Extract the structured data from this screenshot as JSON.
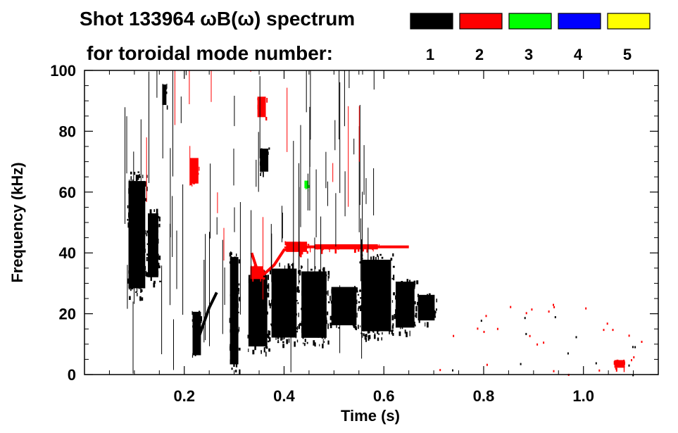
{
  "title_line1": "Shot 133964 ωB(ω) spectrum",
  "title_line2": "for toroidal mode number:",
  "legend": [
    {
      "label": "1",
      "color": "#000000"
    },
    {
      "label": "2",
      "color": "#ff0000"
    },
    {
      "label": "3",
      "color": "#00ff00"
    },
    {
      "label": "4",
      "color": "#0000ff"
    },
    {
      "label": "5",
      "color": "#ffff00"
    }
  ],
  "chart_data": {
    "type": "heatmap",
    "xlabel": "Time (s)",
    "ylabel": "Frequency (kHz)",
    "xlim": [
      0.0,
      1.15
    ],
    "ylim": [
      0,
      100
    ],
    "xticks": [
      0.2,
      0.4,
      0.6,
      0.8,
      1.0
    ],
    "xtick_labels": [
      "0.2",
      "0.4",
      "0.6",
      "0.8",
      "1.0"
    ],
    "yticks": [
      0,
      20,
      40,
      60,
      80,
      100
    ],
    "ytick_labels": [
      "0",
      "20",
      "40",
      "60",
      "80",
      "100"
    ],
    "grid": false,
    "legend_position": "top-right",
    "regions": [
      {
        "mode": 1,
        "t": [
          0.085,
          0.125
        ],
        "f": [
          25,
          67
        ]
      },
      {
        "mode": 1,
        "t": [
          0.125,
          0.15
        ],
        "f": [
          30,
          55
        ]
      },
      {
        "mode": 1,
        "t": [
          0.215,
          0.235
        ],
        "f": [
          5,
          22
        ]
      },
      {
        "mode": 1,
        "t": [
          0.29,
          0.31
        ],
        "f": [
          0,
          42
        ]
      },
      {
        "mode": 1,
        "t": [
          0.325,
          0.37
        ],
        "f": [
          7,
          35
        ]
      },
      {
        "mode": 1,
        "t": [
          0.37,
          0.43
        ],
        "f": [
          10,
          37
        ]
      },
      {
        "mode": 1,
        "t": [
          0.43,
          0.49
        ],
        "f": [
          10,
          36
        ]
      },
      {
        "mode": 1,
        "t": [
          0.49,
          0.55
        ],
        "f": [
          15,
          30
        ]
      },
      {
        "mode": 1,
        "t": [
          0.55,
          0.62
        ],
        "f": [
          12,
          40
        ]
      },
      {
        "mode": 1,
        "t": [
          0.62,
          0.665
        ],
        "f": [
          14,
          32
        ]
      },
      {
        "mode": 1,
        "t": [
          0.665,
          0.705
        ],
        "f": [
          17,
          27
        ]
      },
      {
        "mode": 1,
        "t": [
          0.35,
          0.37
        ],
        "f": [
          66,
          75
        ]
      },
      {
        "mode": 1,
        "t": [
          0.155,
          0.165
        ],
        "f": [
          88,
          96
        ]
      },
      {
        "mode": 2,
        "t": [
          0.21,
          0.23
        ],
        "f": [
          62,
          72
        ]
      },
      {
        "mode": 2,
        "t": [
          0.345,
          0.365
        ],
        "f": [
          84,
          92
        ]
      },
      {
        "mode": 2,
        "t": [
          0.33,
          0.36
        ],
        "f": [
          31,
          36
        ]
      },
      {
        "mode": 2,
        "t": [
          0.4,
          0.45
        ],
        "f": [
          40,
          44
        ]
      },
      {
        "mode": 2,
        "t": [
          0.45,
          0.6
        ],
        "f": [
          41,
          43
        ]
      },
      {
        "mode": 2,
        "t": [
          1.06,
          1.085
        ],
        "f": [
          2,
          5
        ]
      },
      {
        "mode": 3,
        "t": [
          0.44,
          0.45
        ],
        "f": [
          61,
          64
        ]
      }
    ],
    "lines": [
      {
        "mode": 2,
        "t": [
          0.335,
          0.345,
          0.36,
          0.38,
          0.4,
          0.45,
          0.55,
          0.65
        ],
        "f": [
          40,
          35,
          33,
          36,
          41,
          42,
          42,
          42
        ]
      },
      {
        "mode": 1,
        "t": [
          0.22,
          0.235,
          0.25,
          0.265
        ],
        "f": [
          8,
          15,
          22,
          27
        ]
      }
    ]
  }
}
